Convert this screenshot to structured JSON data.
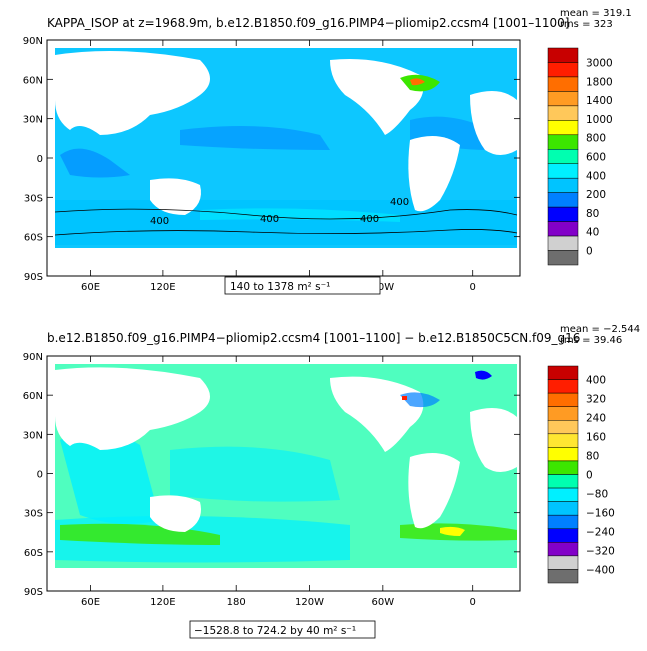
{
  "panels": [
    {
      "title": "KAPPA_ISOP at z=1968.9m, b.e12.B1850.f09_g16.PIMP4−pliomip2.ccsm4 [1001–1100]",
      "mean": "mean = 319.1",
      "rms": "rms = 323",
      "range_text": "140 to 1378 m² s⁻¹",
      "contour_labels": [
        "400",
        "400",
        "400",
        "400"
      ],
      "colorbar": {
        "labels": [
          "3000",
          "1800",
          "1400",
          "1000",
          "800",
          "600",
          "400",
          "200",
          "80",
          "40",
          "0"
        ],
        "colors": [
          "#c80000",
          "#ff1e00",
          "#ff6e00",
          "#ff9b23",
          "#ffc85a",
          "#ffff00",
          "#3ce600",
          "#00ffb0",
          "#00f0ff",
          "#00c4ff",
          "#0080ff",
          "#0000ff",
          "#8200c8",
          "#d0d0d0",
          "#6e6e6e"
        ]
      }
    },
    {
      "title": "b.e12.B1850.f09_g16.PIMP4−pliomip2.ccsm4 [1001–1100] − b.e12.B1850C5CN.f09_g16",
      "mean": "mean = −2.544",
      "rms": "rms = 39.46",
      "range_text": "−1528.8 to 724.2 by 40 m² s⁻¹",
      "colorbar": {
        "labels": [
          "400",
          "320",
          "240",
          "160",
          "80",
          "0",
          "−80",
          "−160",
          "−240",
          "−320",
          "−400"
        ],
        "colors": [
          "#c80000",
          "#ff1e00",
          "#ff6e00",
          "#ff9b23",
          "#ffc85a",
          "#ffe632",
          "#ffff00",
          "#3ce600",
          "#00ffb0",
          "#00f0ff",
          "#00c4ff",
          "#0080ff",
          "#0000ff",
          "#8200c8",
          "#d0d0d0",
          "#6e6e6e"
        ]
      }
    }
  ],
  "axes": {
    "lat_labels": [
      "90N",
      "60N",
      "30N",
      "0",
      "30S",
      "60S",
      "90S"
    ],
    "lon_labels": [
      "60E",
      "120E",
      "180",
      "120W",
      "60W",
      "0"
    ]
  }
}
